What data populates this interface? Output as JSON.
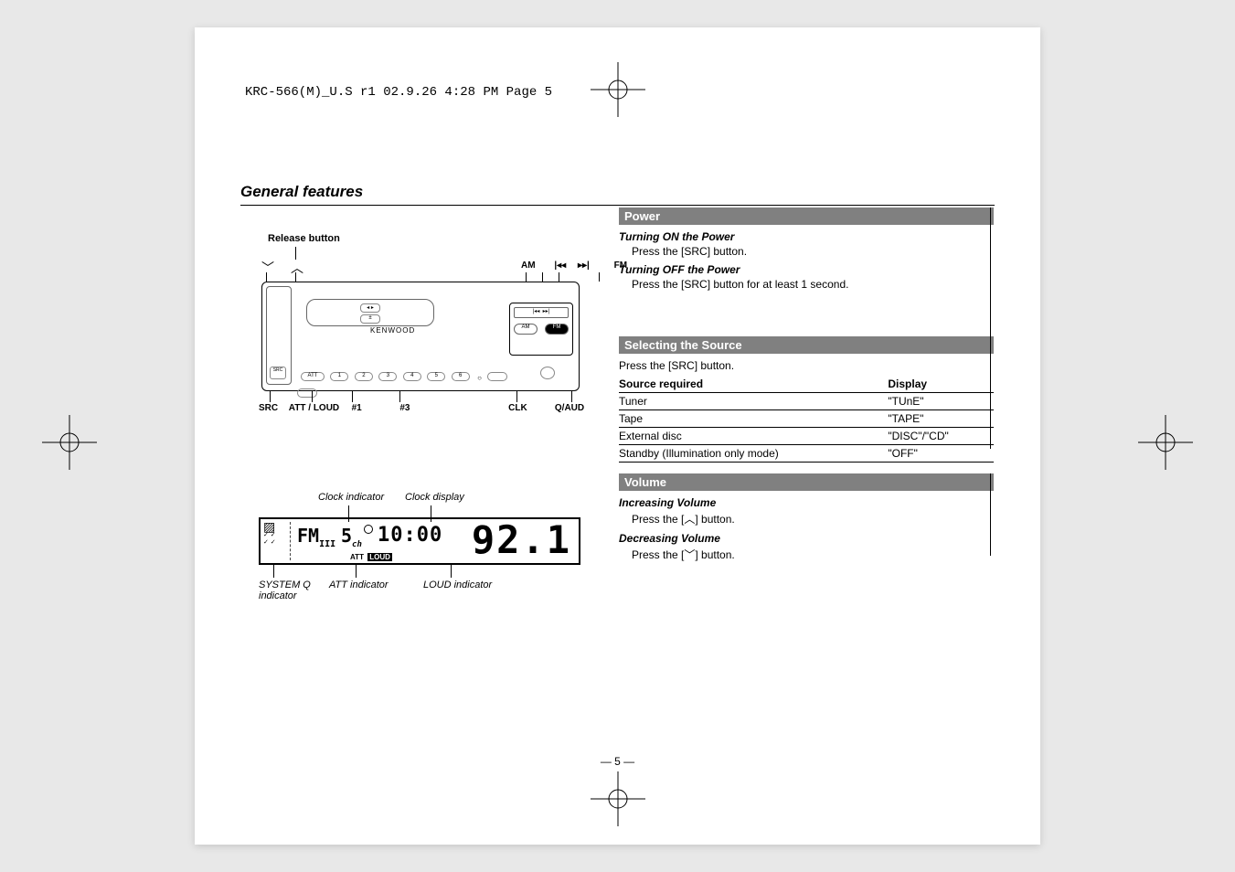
{
  "doc_header": "KRC-566(M)_U.S r1  02.9.26  4:28 PM  Page 5",
  "section_title": "General features",
  "release_button": "Release button",
  "top_row": {
    "am": "AM",
    "prev": "|◂◂",
    "next": "▸▸|",
    "fm": "FM"
  },
  "kenwood": "KENWOOD",
  "bottom_row": {
    "src": "SRC",
    "att_loud": "ATT / LOUD",
    "n1": "#1",
    "n3": "#3",
    "clk": "CLK",
    "q_aud": "Q/AUD"
  },
  "lcd_labels": {
    "clock_indicator": "Clock indicator",
    "clock_display": "Clock display",
    "system_q": "SYSTEM Q indicator",
    "att_indicator": "ATT indicator",
    "loud_indicator": "LOUD indicator"
  },
  "lcd": {
    "fm": "FM",
    "sub": "III",
    "ch": "5",
    "ch_sub": "ch",
    "time": "10:00",
    "freq": "92.1",
    "att": "ATT",
    "loud": "LOUD"
  },
  "power": {
    "title": "Power",
    "on_head": "Turning ON the Power",
    "on_body": "Press the [SRC] button.",
    "off_head": "Turning OFF the Power",
    "off_body": "Press the [SRC] button for at least 1 second."
  },
  "source": {
    "title": "Selecting the Source",
    "intro": "Press the [SRC] button.",
    "col1": "Source required",
    "col2": "Display",
    "rows": [
      [
        "Tuner",
        "\"TUnE\""
      ],
      [
        "Tape",
        "\"TAPE\""
      ],
      [
        "External disc",
        "\"DISC\"/\"CD\""
      ],
      [
        "Standby (Illumination only mode)",
        "\"OFF\""
      ]
    ]
  },
  "volume": {
    "title": "Volume",
    "inc_head": "Increasing Volume",
    "inc_body": "Press the [︿] button.",
    "dec_head": "Decreasing Volume",
    "dec_body": "Press the [﹀] button."
  },
  "page_num": "— 5 —",
  "colors": {
    "bar_bg": "#808080",
    "bar_fg": "#ffffff",
    "page_bg": "#ffffff",
    "body_bg": "#e8e8e8"
  }
}
